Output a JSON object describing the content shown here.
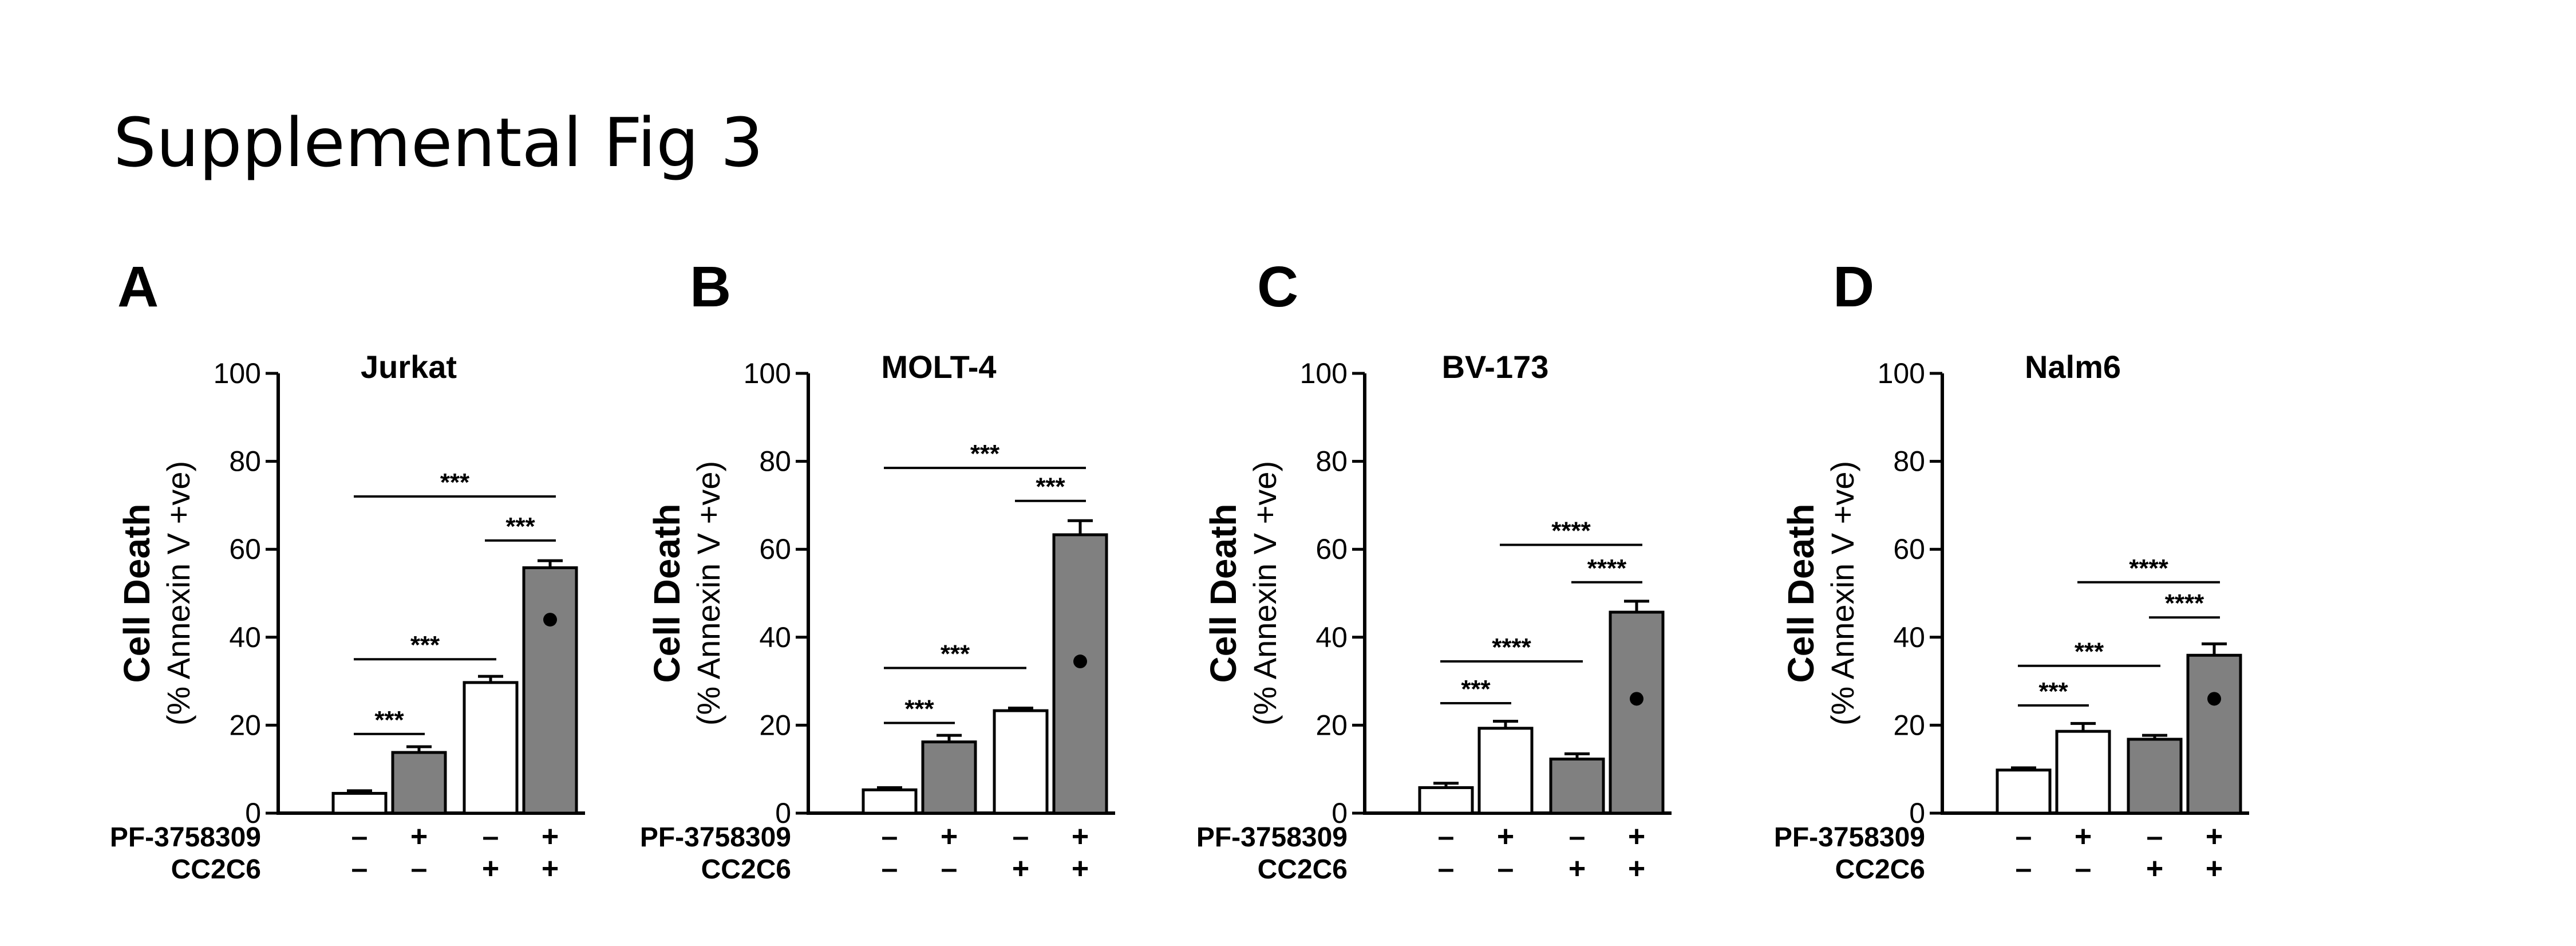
{
  "figure_title": "Supplemental Fig 3",
  "chart_data": [
    {
      "type": "bar",
      "panel": "A",
      "title": "Jurkat",
      "ylabel": "Cell Death",
      "ylabel_sub": "(% Annexin V +ve)",
      "ylim": [
        0,
        100
      ],
      "yticks": [
        0,
        20,
        40,
        60,
        80,
        100
      ],
      "conditions": [
        {
          "label": "PF-3758309",
          "signs": [
            "–",
            "+",
            "–",
            "+"
          ]
        },
        {
          "label": "CC2C6",
          "signs": [
            "–",
            "–",
            "+",
            "+"
          ]
        }
      ],
      "values": [
        4.5,
        13.8,
        29.7,
        55.8
      ],
      "errors": [
        0.6,
        1.3,
        1.4,
        1.6
      ],
      "fills": [
        "#ffffff",
        "#808080",
        "#ffffff",
        "#808080"
      ],
      "dot_values": [
        null,
        null,
        null,
        44
      ],
      "significance": [
        {
          "from": 0,
          "to": 1,
          "y": 18,
          "label": "***"
        },
        {
          "from": 0,
          "to": 2,
          "y": 35,
          "label": "***"
        },
        {
          "from": 2,
          "to": 3,
          "y": 62,
          "label": "***"
        },
        {
          "from": 0,
          "to": 3,
          "y": 72,
          "label": "***"
        }
      ]
    },
    {
      "type": "bar",
      "panel": "B",
      "title": "MOLT-4",
      "ylabel": "Cell Death",
      "ylabel_sub": "(% Annexin V +ve)",
      "ylim": [
        0,
        100
      ],
      "yticks": [
        0,
        20,
        40,
        60,
        80,
        100
      ],
      "conditions": [
        {
          "label": "PF-3758309",
          "signs": [
            "–",
            "+",
            "–",
            "+"
          ]
        },
        {
          "label": "CC2C6",
          "signs": [
            "–",
            "–",
            "+",
            "+"
          ]
        }
      ],
      "values": [
        5.3,
        16.2,
        23.3,
        63.3
      ],
      "errors": [
        0.5,
        1.5,
        0.6,
        3.2
      ],
      "fills": [
        "#ffffff",
        "#808080",
        "#ffffff",
        "#808080"
      ],
      "dot_values": [
        null,
        null,
        null,
        34.5
      ],
      "significance": [
        {
          "from": 0,
          "to": 1,
          "y": 20.5,
          "label": "***"
        },
        {
          "from": 0,
          "to": 2,
          "y": 33,
          "label": "***"
        },
        {
          "from": 2,
          "to": 3,
          "y": 71,
          "label": "***"
        },
        {
          "from": 0,
          "to": 3,
          "y": 78.5,
          "label": "***"
        }
      ]
    },
    {
      "type": "bar",
      "panel": "C",
      "title": "BV-173",
      "ylabel": "Cell Death",
      "ylabel_sub": "(% Annexin V +ve)",
      "ylim": [
        0,
        100
      ],
      "yticks": [
        0,
        20,
        40,
        60,
        80,
        100
      ],
      "conditions": [
        {
          "label": "PF-3758309",
          "signs": [
            "–",
            "+",
            "–",
            "+"
          ]
        },
        {
          "label": "CC2C6",
          "signs": [
            "–",
            "–",
            "+",
            "+"
          ]
        }
      ],
      "values": [
        5.8,
        19.3,
        12.3,
        45.7
      ],
      "errors": [
        1.0,
        1.6,
        1.2,
        2.5
      ],
      "fills": [
        "#ffffff",
        "#ffffff",
        "#808080",
        "#808080"
      ],
      "dot_values": [
        null,
        null,
        null,
        26
      ],
      "significance": [
        {
          "from": 0,
          "to": 1,
          "y": 25,
          "label": "***"
        },
        {
          "from": 0,
          "to": 2,
          "y": 34.5,
          "label": "****"
        },
        {
          "from": 2,
          "to": 3,
          "y": 52.5,
          "label": "****"
        },
        {
          "from": 1,
          "to": 3,
          "y": 61,
          "label": "****"
        }
      ]
    },
    {
      "type": "bar",
      "panel": "D",
      "title": "Nalm6",
      "ylabel": "Cell Death",
      "ylabel_sub": "(% Annexin V +ve)",
      "ylim": [
        0,
        100
      ],
      "yticks": [
        0,
        20,
        40,
        60,
        80,
        100
      ],
      "conditions": [
        {
          "label": "PF-3758309",
          "signs": [
            "–",
            "+",
            "–",
            "+"
          ]
        },
        {
          "label": "CC2C6",
          "signs": [
            "–",
            "–",
            "+",
            "+"
          ]
        }
      ],
      "values": [
        9.8,
        18.6,
        16.8,
        35.9
      ],
      "errors": [
        0.5,
        1.8,
        0.9,
        2.6
      ],
      "fills": [
        "#ffffff",
        "#ffffff",
        "#808080",
        "#808080"
      ],
      "dot_values": [
        null,
        null,
        null,
        26
      ],
      "significance": [
        {
          "from": 0,
          "to": 1,
          "y": 24.5,
          "label": "***"
        },
        {
          "from": 0,
          "to": 2,
          "y": 33.5,
          "label": "***"
        },
        {
          "from": 2,
          "to": 3,
          "y": 44.5,
          "label": "****"
        },
        {
          "from": 1,
          "to": 3,
          "y": 52.5,
          "label": "****"
        }
      ]
    }
  ]
}
